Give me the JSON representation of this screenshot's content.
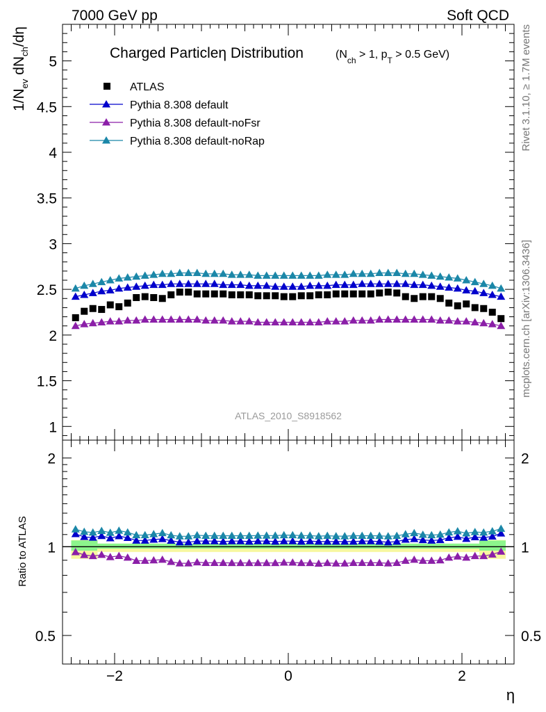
{
  "header": {
    "left": "7000 GeV pp",
    "right": "Soft QCD"
  },
  "side_labels": {
    "top": "Rivet 3.1.10, ≥ 1.7M events",
    "bottom": "mcplots.cern.ch [arXiv:1306.3436]"
  },
  "colors": {
    "atlas": "#000000",
    "default": "#0000cc",
    "noFsr": "#8b1fa8",
    "noRap": "#1b87a8",
    "band_green": "#8cf58c",
    "band_yellow": "#f7f7a0"
  },
  "chart_data": [
    {
      "type": "scatter",
      "title": "Charged Particleη Distribution",
      "subtitle_parts": [
        "(N",
        "ch",
        " > 1, p",
        "T",
        " > 0.5 GeV)"
      ],
      "ylabel_parts": [
        "1/N",
        "ev",
        " dN",
        "ch",
        "/dη"
      ],
      "watermark": "ATLAS_2010_S8918562",
      "xlim": [
        -2.6,
        2.6
      ],
      "ylim": [
        0.85,
        5.4
      ],
      "yticks": [
        "1",
        "1.5",
        "2",
        "2.5",
        "3",
        "3.5",
        "4",
        "4.5",
        "5"
      ],
      "x": [
        -2.45,
        -2.35,
        -2.25,
        -2.15,
        -2.05,
        -1.95,
        -1.85,
        -1.75,
        -1.65,
        -1.55,
        -1.45,
        -1.35,
        -1.25,
        -1.15,
        -1.05,
        -0.95,
        -0.85,
        -0.75,
        -0.65,
        -0.55,
        -0.45,
        -0.35,
        -0.25,
        -0.15,
        -0.05,
        0.05,
        0.15,
        0.25,
        0.35,
        0.45,
        0.55,
        0.65,
        0.75,
        0.85,
        0.95,
        1.05,
        1.15,
        1.25,
        1.35,
        1.45,
        1.55,
        1.65,
        1.75,
        1.85,
        1.95,
        2.05,
        2.15,
        2.25,
        2.35,
        2.45
      ],
      "legend": [
        "ATLAS",
        "Pythia 8.308 default",
        "Pythia 8.308 default-noFsr",
        "Pythia 8.308 default-noRap"
      ],
      "series": [
        {
          "name": "ATLAS",
          "values": [
            2.19,
            2.26,
            2.29,
            2.28,
            2.33,
            2.31,
            2.35,
            2.41,
            2.42,
            2.41,
            2.4,
            2.44,
            2.47,
            2.47,
            2.45,
            2.45,
            2.45,
            2.45,
            2.44,
            2.44,
            2.44,
            2.43,
            2.43,
            2.43,
            2.42,
            2.42,
            2.43,
            2.43,
            2.44,
            2.44,
            2.45,
            2.45,
            2.45,
            2.45,
            2.45,
            2.46,
            2.47,
            2.46,
            2.42,
            2.4,
            2.42,
            2.42,
            2.4,
            2.35,
            2.32,
            2.34,
            2.3,
            2.29,
            2.25,
            2.18
          ]
        },
        {
          "name": "Pythia 8.308 default",
          "values": [
            2.42,
            2.44,
            2.46,
            2.48,
            2.49,
            2.51,
            2.52,
            2.53,
            2.54,
            2.55,
            2.55,
            2.56,
            2.56,
            2.56,
            2.56,
            2.56,
            2.56,
            2.55,
            2.55,
            2.55,
            2.54,
            2.54,
            2.54,
            2.53,
            2.53,
            2.53,
            2.53,
            2.54,
            2.54,
            2.54,
            2.55,
            2.55,
            2.55,
            2.56,
            2.56,
            2.56,
            2.56,
            2.56,
            2.56,
            2.55,
            2.55,
            2.54,
            2.53,
            2.52,
            2.51,
            2.49,
            2.48,
            2.46,
            2.44,
            2.42
          ]
        },
        {
          "name": "Pythia 8.308 default-noFsr",
          "values": [
            2.1,
            2.12,
            2.13,
            2.14,
            2.15,
            2.15,
            2.16,
            2.16,
            2.17,
            2.17,
            2.17,
            2.17,
            2.17,
            2.17,
            2.17,
            2.16,
            2.16,
            2.16,
            2.15,
            2.15,
            2.15,
            2.14,
            2.14,
            2.14,
            2.14,
            2.14,
            2.14,
            2.14,
            2.14,
            2.15,
            2.15,
            2.15,
            2.16,
            2.16,
            2.16,
            2.17,
            2.17,
            2.17,
            2.17,
            2.17,
            2.17,
            2.17,
            2.16,
            2.16,
            2.15,
            2.15,
            2.14,
            2.13,
            2.12,
            2.1
          ]
        },
        {
          "name": "Pythia 8.308 default-noRap",
          "values": [
            2.51,
            2.54,
            2.56,
            2.58,
            2.6,
            2.62,
            2.63,
            2.64,
            2.65,
            2.66,
            2.67,
            2.67,
            2.68,
            2.68,
            2.68,
            2.67,
            2.67,
            2.67,
            2.66,
            2.66,
            2.66,
            2.65,
            2.65,
            2.65,
            2.65,
            2.65,
            2.65,
            2.65,
            2.65,
            2.66,
            2.66,
            2.66,
            2.67,
            2.67,
            2.67,
            2.68,
            2.68,
            2.68,
            2.67,
            2.67,
            2.66,
            2.65,
            2.64,
            2.63,
            2.62,
            2.6,
            2.58,
            2.56,
            2.54,
            2.51
          ]
        }
      ]
    },
    {
      "type": "scatter",
      "ylabel": "Ratio to ATLAS",
      "xlabel": "η",
      "xlim": [
        -2.6,
        2.6
      ],
      "ylim": [
        0.4,
        2.3
      ],
      "xticks": [
        "−2",
        "0",
        "2"
      ],
      "yticks": [
        "0.5",
        "1",
        "2"
      ],
      "x": [
        -2.45,
        -2.35,
        -2.25,
        -2.15,
        -2.05,
        -1.95,
        -1.85,
        -1.75,
        -1.65,
        -1.55,
        -1.45,
        -1.35,
        -1.25,
        -1.15,
        -1.05,
        -0.95,
        -0.85,
        -0.75,
        -0.65,
        -0.55,
        -0.45,
        -0.35,
        -0.25,
        -0.15,
        -0.05,
        0.05,
        0.15,
        0.25,
        0.35,
        0.45,
        0.55,
        0.65,
        0.75,
        0.85,
        0.95,
        1.05,
        1.15,
        1.25,
        1.35,
        1.45,
        1.55,
        1.65,
        1.75,
        1.85,
        1.95,
        2.05,
        2.15,
        2.25,
        2.35,
        2.45
      ],
      "series": [
        {
          "name": "Pythia 8.308 default",
          "values": [
            1.105,
            1.08,
            1.074,
            1.088,
            1.069,
            1.087,
            1.072,
            1.05,
            1.05,
            1.058,
            1.063,
            1.049,
            1.036,
            1.036,
            1.045,
            1.045,
            1.045,
            1.041,
            1.045,
            1.045,
            1.041,
            1.045,
            1.045,
            1.041,
            1.045,
            1.045,
            1.041,
            1.045,
            1.041,
            1.041,
            1.041,
            1.041,
            1.041,
            1.045,
            1.045,
            1.041,
            1.036,
            1.041,
            1.058,
            1.063,
            1.054,
            1.05,
            1.054,
            1.072,
            1.082,
            1.064,
            1.078,
            1.074,
            1.084,
            1.11
          ]
        },
        {
          "name": "Pythia 8.308 default-noFsr",
          "values": [
            0.959,
            0.938,
            0.93,
            0.939,
            0.923,
            0.931,
            0.919,
            0.896,
            0.897,
            0.9,
            0.904,
            0.889,
            0.879,
            0.879,
            0.886,
            0.882,
            0.882,
            0.882,
            0.881,
            0.881,
            0.881,
            0.881,
            0.881,
            0.881,
            0.884,
            0.884,
            0.881,
            0.881,
            0.877,
            0.881,
            0.878,
            0.878,
            0.882,
            0.882,
            0.882,
            0.882,
            0.879,
            0.882,
            0.897,
            0.904,
            0.897,
            0.897,
            0.9,
            0.919,
            0.927,
            0.919,
            0.93,
            0.93,
            0.942,
            0.963
          ]
        },
        {
          "name": "Pythia 8.308 default-noRap",
          "values": [
            1.146,
            1.124,
            1.118,
            1.132,
            1.116,
            1.134,
            1.119,
            1.095,
            1.095,
            1.104,
            1.113,
            1.094,
            1.085,
            1.085,
            1.094,
            1.09,
            1.09,
            1.09,
            1.09,
            1.09,
            1.09,
            1.091,
            1.091,
            1.091,
            1.095,
            1.095,
            1.091,
            1.091,
            1.086,
            1.09,
            1.086,
            1.086,
            1.09,
            1.09,
            1.09,
            1.089,
            1.085,
            1.089,
            1.103,
            1.113,
            1.099,
            1.095,
            1.1,
            1.119,
            1.129,
            1.111,
            1.122,
            1.118,
            1.129,
            1.151
          ]
        }
      ]
    }
  ]
}
